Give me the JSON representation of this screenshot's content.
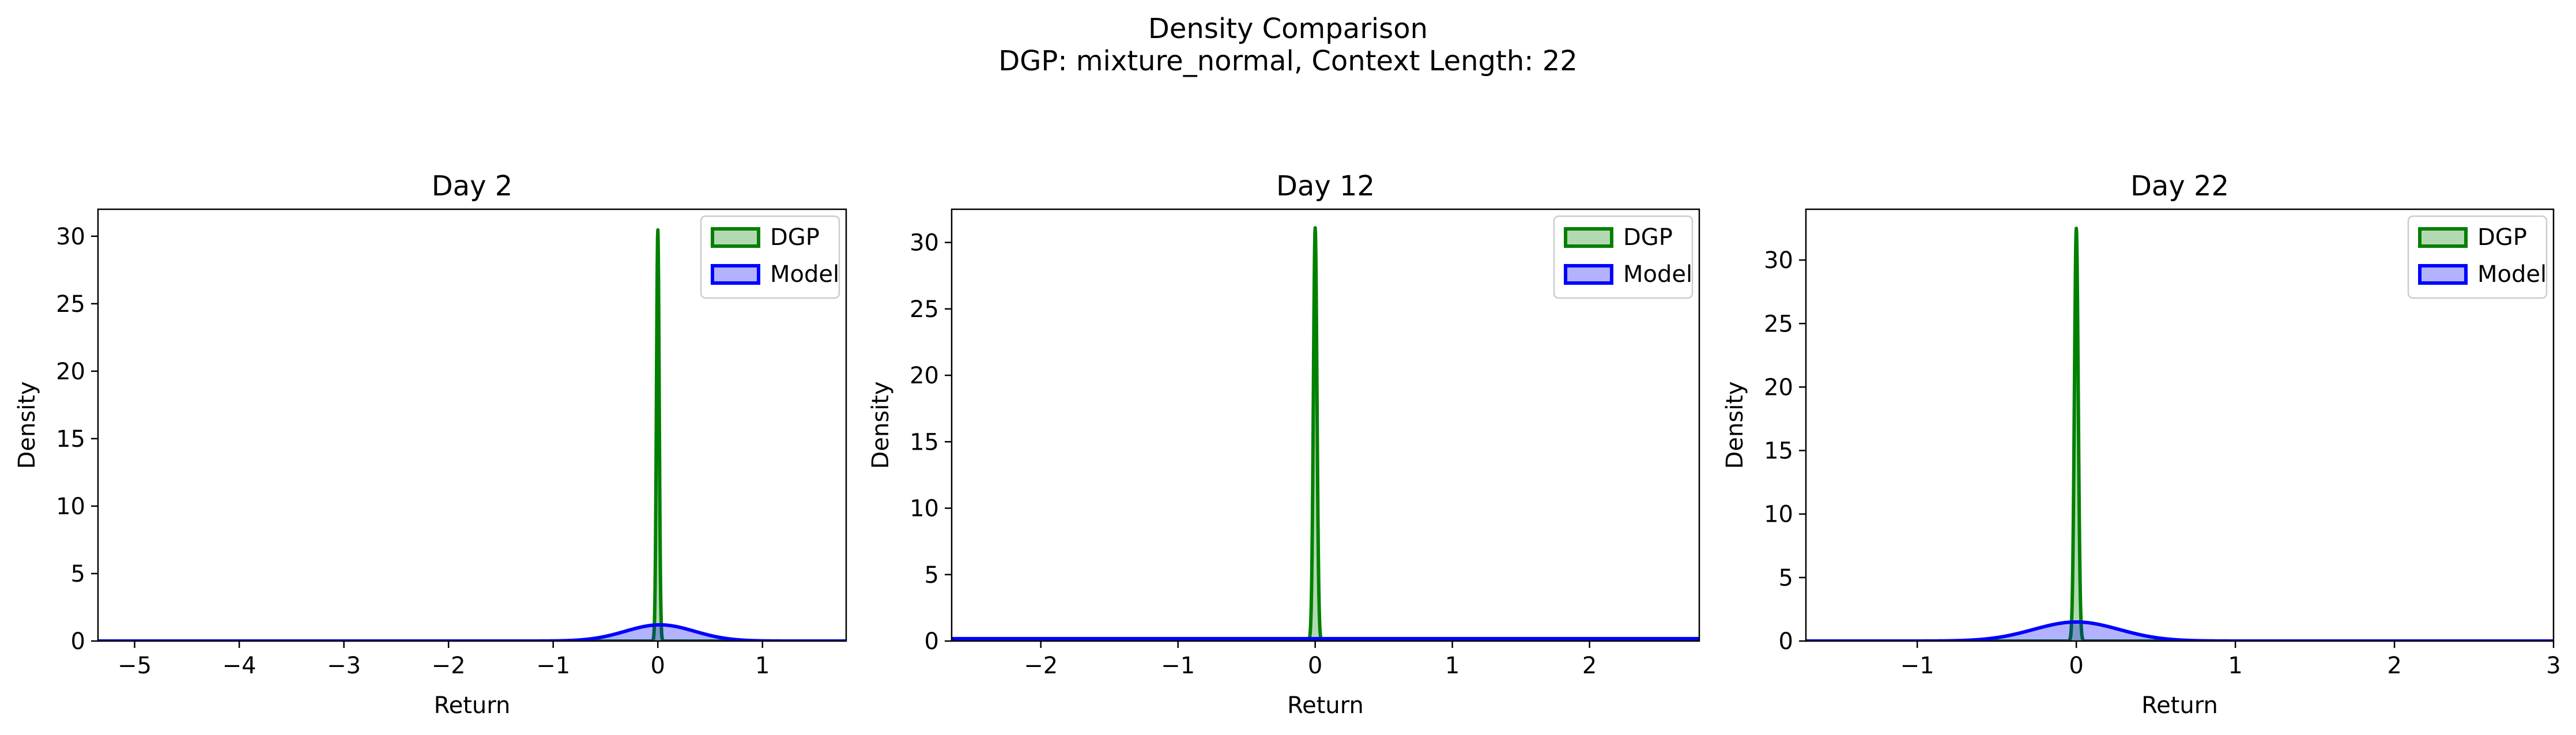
{
  "figure": {
    "title_line1": "Density Comparison",
    "title_line2": "DGP: mixture_normal, Context Length: 22"
  },
  "colors": {
    "dgp": "#008000",
    "dgp_fill": "rgba(0,128,0,0.3)",
    "model": "#0000ff",
    "model_fill": "rgba(0,0,255,0.3)"
  },
  "chart_data": [
    {
      "type": "area",
      "title": "Day 2",
      "xlabel": "Return",
      "ylabel": "Density",
      "xlim": [
        -5.35,
        1.8
      ],
      "ylim": [
        0,
        32
      ],
      "xticks": [
        -5,
        -4,
        -3,
        -2,
        -1,
        0,
        1
      ],
      "yticks": [
        0,
        5,
        10,
        15,
        20,
        25,
        30
      ],
      "legend": "upper right",
      "series": [
        {
          "name": "DGP",
          "kind": "gaussian",
          "mean": 0.0,
          "peak": 30.5,
          "sd": 0.013,
          "x_range": [
            -5.35,
            1.8
          ]
        },
        {
          "name": "Model",
          "kind": "gaussian",
          "mean": 0.02,
          "peak": 1.2,
          "sd": 0.33,
          "x_range": [
            -5.35,
            1.8
          ]
        }
      ]
    },
    {
      "type": "area",
      "title": "Day 12",
      "xlabel": "Return",
      "ylabel": "Density",
      "xlim": [
        -2.65,
        2.8
      ],
      "ylim": [
        0,
        32.5
      ],
      "xticks": [
        -2,
        -1,
        0,
        1,
        2
      ],
      "yticks": [
        0,
        5,
        10,
        15,
        20,
        25,
        30
      ],
      "legend": "upper right",
      "series": [
        {
          "name": "DGP",
          "kind": "gaussian",
          "mean": 0.0,
          "peak": 31.1,
          "sd": 0.013,
          "x_range": [
            -2.65,
            2.8
          ]
        },
        {
          "name": "Model",
          "kind": "gaussian",
          "mean": 0.0,
          "peak": 0.18,
          "sd": 40,
          "x_range": [
            -2.65,
            2.8
          ]
        }
      ]
    },
    {
      "type": "area",
      "title": "Day 22",
      "xlabel": "Return",
      "ylabel": "Density",
      "xlim": [
        -1.7,
        3.0
      ],
      "ylim": [
        0,
        34
      ],
      "xticks": [
        -1,
        0,
        1,
        2,
        3
      ],
      "yticks": [
        0,
        5,
        10,
        15,
        20,
        25,
        30
      ],
      "legend": "upper right",
      "series": [
        {
          "name": "DGP",
          "kind": "gaussian",
          "mean": 0.0,
          "peak": 32.5,
          "sd": 0.012,
          "x_range": [
            -1.7,
            3.0
          ]
        },
        {
          "name": "Model",
          "kind": "gaussian",
          "mean": 0.0,
          "peak": 1.5,
          "sd": 0.27,
          "x_range": [
            -1.7,
            3.0
          ]
        }
      ]
    }
  ]
}
